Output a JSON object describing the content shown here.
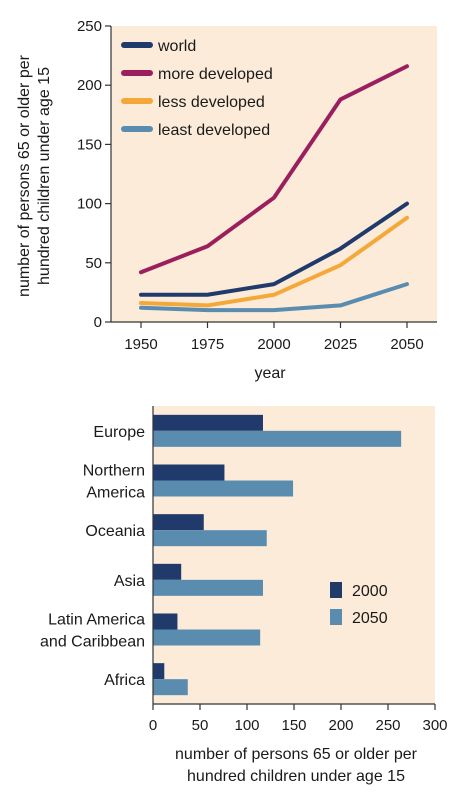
{
  "colors": {
    "plot_bg": "#fbebd8",
    "axis": "#333333"
  },
  "chart_data": [
    {
      "type": "line",
      "xlabel": "year",
      "ylabel": "number of persons 65 or older per hundred children under age 15",
      "ylabel_lines": [
        "number of persons 65 or older per",
        "hundred children under age 15"
      ],
      "x": [
        1950,
        1975,
        2000,
        2025,
        2050
      ],
      "x_ticks": [
        "1950",
        "1975",
        "2000",
        "2025",
        "2050"
      ],
      "ylim": [
        0,
        250
      ],
      "y_ticks": [
        "0",
        "50",
        "100",
        "150",
        "200",
        "250"
      ],
      "grid": false,
      "legend_position": "top-left",
      "series": [
        {
          "name": "world",
          "color": "#1f3a6b",
          "values": [
            23,
            23,
            32,
            62,
            100
          ]
        },
        {
          "name": "more developed",
          "color": "#9b1f5e",
          "values": [
            42,
            64,
            105,
            188,
            216
          ]
        },
        {
          "name": "less developed",
          "color": "#f5a83a",
          "values": [
            16,
            14,
            23,
            48,
            88
          ]
        },
        {
          "name": "least developed",
          "color": "#5a8cb0",
          "values": [
            12,
            10,
            10,
            14,
            32
          ]
        }
      ]
    },
    {
      "type": "bar",
      "orientation": "horizontal",
      "categories": [
        [
          "Europe"
        ],
        [
          "Northern",
          "America"
        ],
        [
          "Oceania"
        ],
        [
          "Asia"
        ],
        [
          "Latin America",
          "and Caribbean"
        ],
        [
          "Africa"
        ]
      ],
      "xlabel_lines": [
        "number of persons 65 or older per",
        "hundred children under age 15"
      ],
      "xlim": [
        0,
        300
      ],
      "x_ticks": [
        "0",
        "50",
        "100",
        "150",
        "200",
        "250",
        "300"
      ],
      "legend_position": "right",
      "series": [
        {
          "name": "2000",
          "color": "#1f3a6b",
          "values": [
            117,
            76,
            54,
            30,
            26,
            12
          ]
        },
        {
          "name": "2050",
          "color": "#5a8cb0",
          "values": [
            264,
            149,
            121,
            117,
            114,
            37
          ]
        }
      ]
    }
  ]
}
